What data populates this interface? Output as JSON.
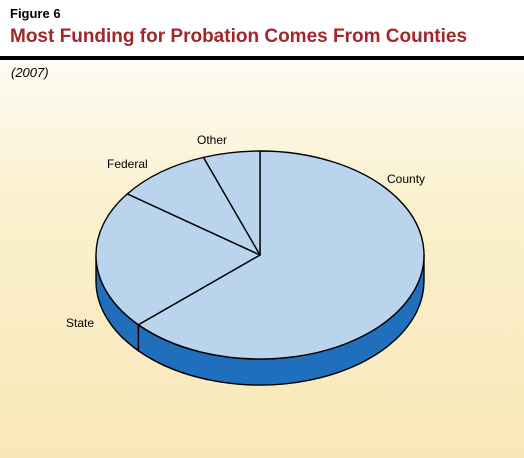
{
  "header": {
    "figure_label": "Figure 6",
    "title": "Most Funding for Probation Comes From Counties",
    "subtitle": "(2007)"
  },
  "colors": {
    "title": "#a3262a",
    "slice_top": "#b9d4ec",
    "slice_side": "#1f6fbd",
    "outline": "#000000",
    "background_top": "#fdfbf4",
    "background_bottom": "#f8e7b8"
  },
  "chart_data": {
    "type": "pie",
    "style": "3d",
    "title": "Most Funding for Probation Comes From Counties",
    "subtitle": "(2007)",
    "categories": [
      "County",
      "State",
      "Federal",
      "Other"
    ],
    "values": [
      63.3,
      21.7,
      9.4,
      5.6
    ],
    "unit": "percent"
  }
}
